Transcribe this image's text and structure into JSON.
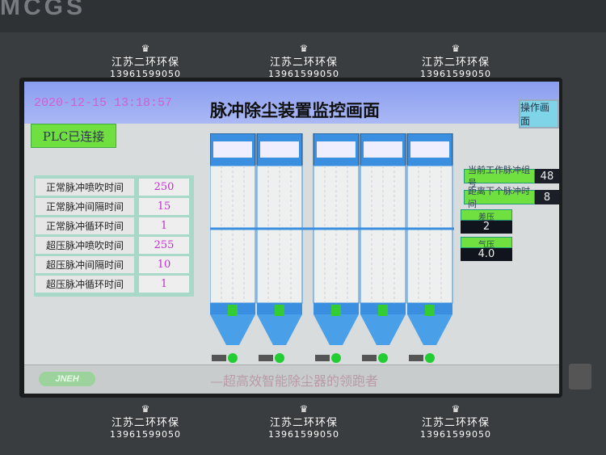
{
  "device": {
    "brand": "MCGS"
  },
  "header": {
    "datetime": "2020-12-15 13:18:57",
    "title": "脉冲除尘装置监控画面",
    "op_button": "操作画面"
  },
  "plc_status": "PLC已连接",
  "params": [
    {
      "label": "正常脉冲喷吹时间",
      "value": "250"
    },
    {
      "label": "正常脉冲间隔时间",
      "value": "15"
    },
    {
      "label": "正常脉冲循环时间",
      "value": "1"
    },
    {
      "label": "超压脉冲喷吹时间",
      "value": "255"
    },
    {
      "label": "超压脉冲间隔时间",
      "value": "10"
    },
    {
      "label": "超压脉冲循环时间",
      "value": "1"
    }
  ],
  "status": [
    {
      "label": "当前工作脉冲组号",
      "value": "48"
    },
    {
      "label": "距离下个脉冲时间",
      "value": "8"
    }
  ],
  "gauges": [
    {
      "label": "差压",
      "value": "2"
    },
    {
      "label": "气压",
      "value": "4.0"
    }
  ],
  "footer": {
    "logo": "JNEH",
    "slogan": "—超高效智能除尘器的领跑者"
  },
  "watermark": {
    "name": "江苏二环环保",
    "phone": "13961599050",
    "icon": "crown-icon"
  },
  "colors": {
    "indicator": "#22cc33",
    "panel_green": "#6fe040",
    "titlebar": "#8a9ef0"
  }
}
